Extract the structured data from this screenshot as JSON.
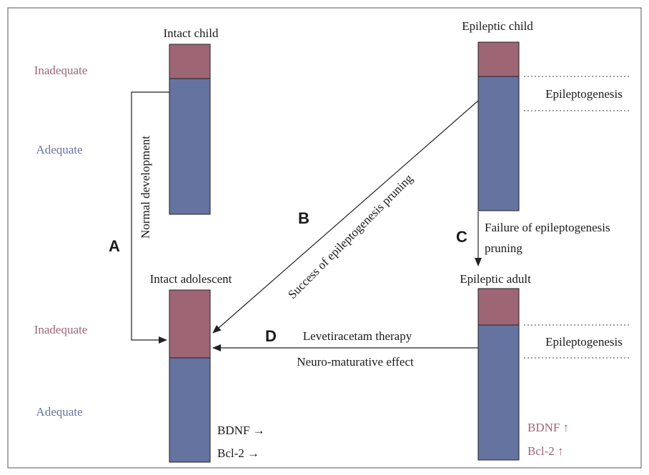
{
  "colors": {
    "inadequate": "#9e6575",
    "adequate": "#6573a0",
    "line": "#222222",
    "frame": "#555555",
    "dotted": "#666666"
  },
  "labels": {
    "intact_child": "Intact child",
    "epileptic_child": "Epileptic child",
    "intact_adolescent": "Intact adolescent",
    "epileptic_adult": "Epileptic adult",
    "inadequate_top": "Inadequate",
    "adequate_top": "Adequate",
    "inadequate_bottom": "Inadequate",
    "adequate_bottom": "Adequate",
    "epileptogenesis_top": "Epileptogenesis",
    "epileptogenesis_bottom": "Epileptogenesis",
    "normal_development": "Normal development",
    "success_pruning": "Success of epileptogenesis pruning",
    "failure_pruning_line1": "Failure of epileptogenesis",
    "failure_pruning_line2": "pruning",
    "levetiracetam": "Levetiracetam therapy",
    "neuro_maturative": "Neuro-maturative effect",
    "bdnf_adolescent": "BDNF →",
    "bcl2_adolescent": "Bcl-2 →",
    "bdnf_adult": "BDNF ↑",
    "bcl2_adult": "Bcl-2 ↑",
    "letter_a": "A",
    "letter_b": "B",
    "letter_c": "C",
    "letter_d": "D"
  }
}
